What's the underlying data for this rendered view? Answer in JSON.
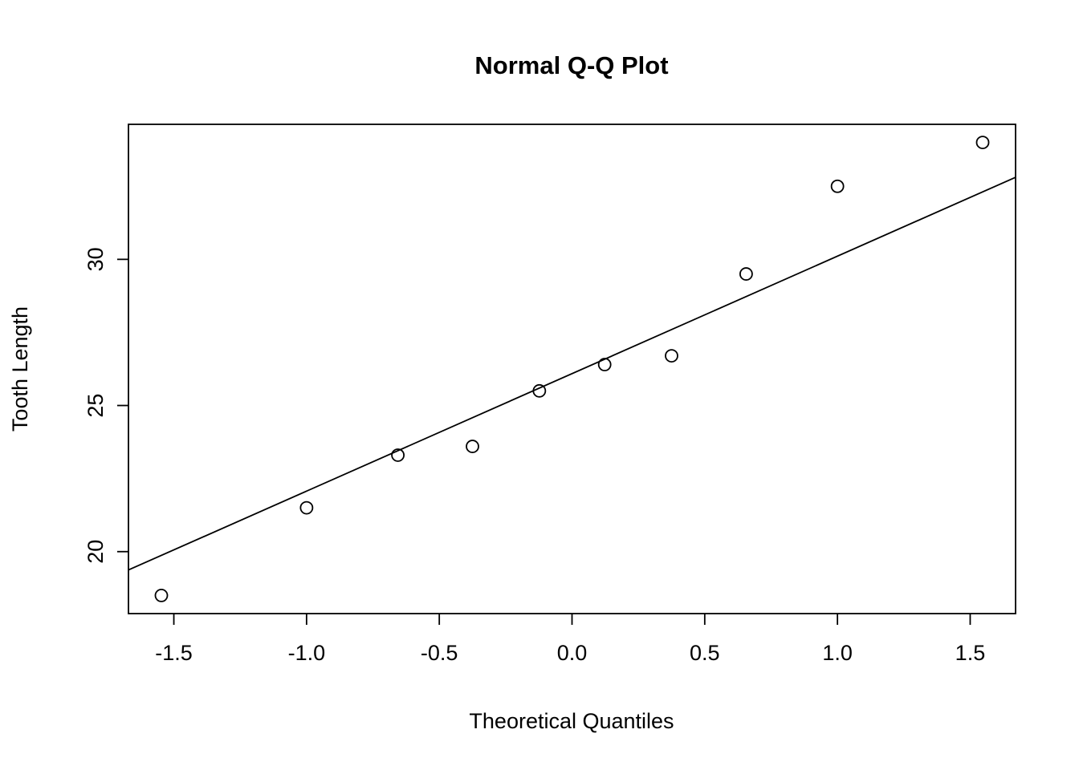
{
  "chart_data": {
    "type": "scatter",
    "title": "Normal Q-Q Plot",
    "xlabel": "Theoretical Quantiles",
    "ylabel": "Tooth Length",
    "xlim": [
      -1.671,
      1.671
    ],
    "ylim": [
      17.88,
      34.62
    ],
    "x_ticks": [
      -1.5,
      -1.0,
      -0.5,
      0.0,
      0.5,
      1.0,
      1.5
    ],
    "x_tick_labels": [
      "-1.5",
      "-1.0",
      "-0.5",
      "0.0",
      "0.5",
      "1.0",
      "1.5"
    ],
    "y_ticks": [
      20,
      25,
      30
    ],
    "y_tick_labels": [
      "20",
      "25",
      "30"
    ],
    "points": [
      {
        "x": -1.547,
        "y": 18.5
      },
      {
        "x": -1.0,
        "y": 21.5
      },
      {
        "x": -0.656,
        "y": 23.3
      },
      {
        "x": -0.375,
        "y": 23.6
      },
      {
        "x": -0.123,
        "y": 25.5
      },
      {
        "x": 0.123,
        "y": 26.4
      },
      {
        "x": 0.375,
        "y": 26.7
      },
      {
        "x": 0.656,
        "y": 29.5
      },
      {
        "x": 1.0,
        "y": 32.5
      },
      {
        "x": 1.547,
        "y": 34.0
      }
    ],
    "qq_line": {
      "slope": 4.02,
      "intercept": 26.09
    },
    "grid": "off",
    "legend": "none",
    "colors": {
      "points": "#000000",
      "line": "#000000",
      "axis": "#000000",
      "background": "#ffffff"
    }
  }
}
